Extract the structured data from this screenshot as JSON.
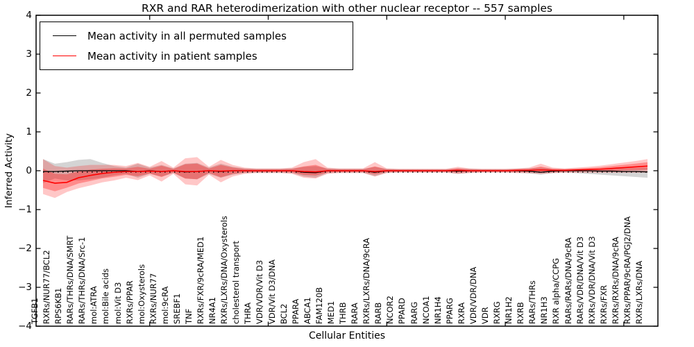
{
  "title": "RXR and RAR heterodimerization with other nuclear receptor -- 557 samples",
  "axes": {
    "ylabel": "Inferred Activity",
    "xlabel": "Cellular Entities",
    "y_ticks": [
      "4",
      "3",
      "2",
      "1",
      "0",
      "−1",
      "−2",
      "−3",
      "−4"
    ]
  },
  "legend": {
    "items": [
      {
        "label": "Mean activity in all permuted samples",
        "color": "#000000"
      },
      {
        "label": "Mean activity in patient samples",
        "color": "#ff0000"
      }
    ]
  },
  "chart_data": {
    "type": "line",
    "title": "RXR and RAR heterodimerization with other nuclear receptor -- 557 samples",
    "xlabel": "Cellular Entities",
    "ylabel": "Inferred Activity",
    "ylim": [
      -4,
      4
    ],
    "grid": false,
    "legend_position": "upper left",
    "zero_line": true,
    "n_samples": 557,
    "categories": [
      "TGFB1",
      "RXRs/NUR77/BCL2",
      "RPS6KB1",
      "RARs/THRs/DNA/SMRT",
      "RARs/THRs/DNA/Src-1",
      "mol:ATRA",
      "mol:Bile acids",
      "mol:Vit D3",
      "RXRs/PPAR",
      "mol:Oxysterols",
      "RXRs/NUR77",
      "mol:9cRA",
      "SREBF1",
      "TNF",
      "RXRs/FXR/9cRA/MED1",
      "NR4A1",
      "RXRs/LXRs/DNA/Oxysterols",
      "cholesterol transport",
      "THRA",
      "VDR/VDR/Vit D3",
      "VDR/Vit D3/DNA",
      "BCL2",
      "PPARA",
      "ABCA1",
      "FAM120B",
      "MED1",
      "THRB",
      "RARA",
      "RXRs/LXRs/DNA/9cRA",
      "RARB",
      "NCOR2",
      "PPARD",
      "RARG",
      "NCOA1",
      "NR1H4",
      "PPARG",
      "RXRA",
      "VDR/VDR/DNA",
      "VDR",
      "RXRG",
      "NR1H2",
      "RXRB",
      "RARs/THRs",
      "NR1H3",
      "RXR alpha/CCPG",
      "RARs/RARs/DNA/9cRA",
      "RARs/VDR/DNA/Vit D3",
      "RXRs/VDR/DNA/Vit D3",
      "RXRs/FXR",
      "RXRs/RXRs/DNA/9cRA",
      "RXRs/PPAR/9cRA/PGJ2/DNA",
      "RXRs/LXRs/DNA"
    ],
    "series": [
      {
        "name": "Mean activity in all permuted samples",
        "color": "#000000",
        "values": [
          -0.02,
          -0.02,
          -0.01,
          0,
          0,
          0,
          0,
          0,
          -0.02,
          0,
          -0.02,
          0,
          -0.03,
          -0.02,
          0,
          -0.02,
          0,
          0,
          0,
          0,
          0,
          0,
          -0.04,
          -0.05,
          0,
          0,
          0,
          0,
          -0.04,
          0,
          0,
          0,
          0,
          0,
          0,
          -0.01,
          0,
          0,
          0,
          0,
          0,
          -0.01,
          -0.04,
          -0.01,
          0,
          0,
          0,
          -0.01,
          -0.01,
          -0.02,
          -0.02,
          -0.03
        ]
      },
      {
        "name": "Mean activity in patient samples",
        "color": "#ff0000",
        "values": [
          -0.25,
          -0.32,
          -0.3,
          -0.18,
          -0.12,
          -0.07,
          -0.04,
          -0.02,
          -0.02,
          -0.01,
          -0.02,
          0,
          -0.02,
          -0.02,
          0,
          -0.01,
          0,
          0,
          0,
          0,
          0,
          0,
          -0.02,
          -0.03,
          0,
          0,
          0,
          0,
          -0.02,
          0,
          0,
          0,
          0,
          0,
          0,
          0.01,
          0,
          0,
          0,
          0,
          0.01,
          0.01,
          0.02,
          0.01,
          0.01,
          0.02,
          0.03,
          0.04,
          0.06,
          0.08,
          0.1,
          0.12
        ]
      }
    ],
    "bands": [
      {
        "name": "permuted-spread",
        "color": "rgba(0,0,0,0.17)",
        "upper": [
          0.3,
          0.18,
          0.22,
          0.28,
          0.3,
          0.2,
          0.12,
          0.08,
          0.18,
          0.08,
          0.15,
          0.06,
          0.18,
          0.2,
          0.08,
          0.18,
          0.1,
          0.06,
          0.05,
          0.05,
          0.05,
          0.06,
          0.1,
          0.12,
          0.06,
          0.05,
          0.05,
          0.05,
          0.1,
          0.05,
          0.04,
          0.04,
          0.04,
          0.04,
          0.04,
          0.06,
          0.05,
          0.04,
          0.04,
          0.04,
          0.05,
          0.06,
          0.08,
          0.05,
          0.04,
          0.05,
          0.05,
          0.05,
          0.06,
          0.06,
          0.07,
          0.08
        ],
        "lower": [
          -0.32,
          -0.2,
          -0.25,
          -0.25,
          -0.22,
          -0.18,
          -0.12,
          -0.08,
          -0.18,
          -0.08,
          -0.15,
          -0.06,
          -0.2,
          -0.22,
          -0.08,
          -0.18,
          -0.1,
          -0.06,
          -0.05,
          -0.05,
          -0.05,
          -0.06,
          -0.15,
          -0.18,
          -0.06,
          -0.05,
          -0.05,
          -0.05,
          -0.14,
          -0.05,
          -0.04,
          -0.04,
          -0.04,
          -0.04,
          -0.04,
          -0.08,
          -0.05,
          -0.04,
          -0.04,
          -0.04,
          -0.05,
          -0.07,
          -0.1,
          -0.06,
          -0.05,
          -0.06,
          -0.08,
          -0.1,
          -0.12,
          -0.14,
          -0.16,
          -0.18
        ]
      },
      {
        "name": "patient-spread",
        "color": "rgba(255,0,0,0.22)",
        "upper": [
          0.3,
          0.12,
          0.08,
          0.12,
          0.15,
          0.15,
          0.15,
          0.12,
          0.2,
          0.1,
          0.25,
          0.08,
          0.32,
          0.35,
          0.1,
          0.28,
          0.15,
          0.08,
          0.06,
          0.06,
          0.06,
          0.08,
          0.22,
          0.3,
          0.08,
          0.06,
          0.06,
          0.06,
          0.22,
          0.06,
          0.05,
          0.05,
          0.05,
          0.05,
          0.05,
          0.1,
          0.06,
          0.05,
          0.05,
          0.05,
          0.06,
          0.08,
          0.18,
          0.08,
          0.06,
          0.08,
          0.1,
          0.13,
          0.17,
          0.21,
          0.25,
          0.3
        ],
        "lower": [
          -0.6,
          -0.7,
          -0.55,
          -0.45,
          -0.38,
          -0.3,
          -0.25,
          -0.18,
          -0.24,
          -0.12,
          -0.28,
          -0.08,
          -0.35,
          -0.38,
          -0.1,
          -0.3,
          -0.15,
          -0.08,
          -0.06,
          -0.06,
          -0.06,
          -0.08,
          -0.18,
          -0.2,
          -0.08,
          -0.06,
          -0.06,
          -0.06,
          -0.15,
          -0.06,
          -0.05,
          -0.05,
          -0.05,
          -0.05,
          -0.05,
          -0.08,
          -0.06,
          -0.05,
          -0.05,
          -0.05,
          -0.06,
          -0.06,
          -0.08,
          -0.06,
          -0.05,
          -0.05,
          -0.05,
          -0.05,
          -0.05,
          -0.05,
          -0.05,
          -0.05
        ]
      }
    ]
  }
}
